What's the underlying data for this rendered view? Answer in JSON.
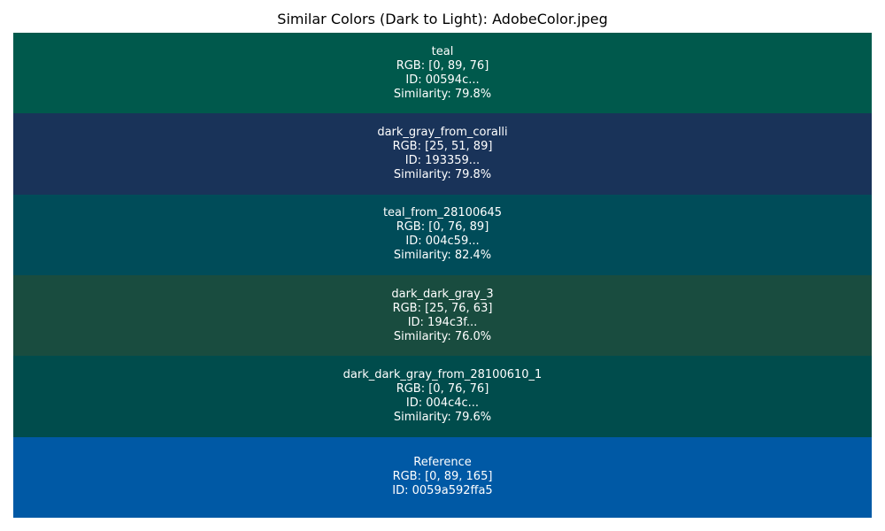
{
  "chart_data": {
    "type": "table",
    "title": "Similar Colors (Dark to Light): AdobeColor.jpeg",
    "swatches": [
      {
        "name": "teal",
        "rgb_text": "RGB: [0, 89, 76]",
        "id_text": "ID: 00594c...",
        "similarity_text": "Similarity: 79.8%",
        "rgb": [
          0,
          89,
          76
        ],
        "color": "#00594c"
      },
      {
        "name": "dark_gray_from_coralli",
        "rgb_text": "RGB: [25, 51, 89]",
        "id_text": "ID: 193359...",
        "similarity_text": "Similarity: 79.8%",
        "rgb": [
          25,
          51,
          89
        ],
        "color": "#193359"
      },
      {
        "name": "teal_from_28100645",
        "rgb_text": "RGB: [0, 76, 89]",
        "id_text": "ID: 004c59...",
        "similarity_text": "Similarity: 82.4%",
        "rgb": [
          0,
          76,
          89
        ],
        "color": "#004c59"
      },
      {
        "name": "dark_dark_gray_3",
        "rgb_text": "RGB: [25, 76, 63]",
        "id_text": "ID: 194c3f...",
        "similarity_text": "Similarity: 76.0%",
        "rgb": [
          25,
          76,
          63
        ],
        "color": "#194c3f"
      },
      {
        "name": "dark_dark_gray_from_28100610_1",
        "rgb_text": "RGB: [0, 76, 76]",
        "id_text": "ID: 004c4c...",
        "similarity_text": "Similarity: 79.6%",
        "rgb": [
          0,
          76,
          76
        ],
        "color": "#004c4c"
      },
      {
        "name": "Reference",
        "rgb_text": "RGB: [0, 89, 165]",
        "id_text": "ID: 0059a592ffa5",
        "similarity_text": "",
        "rgb": [
          0,
          89,
          165
        ],
        "color": "#0059a5"
      }
    ]
  }
}
